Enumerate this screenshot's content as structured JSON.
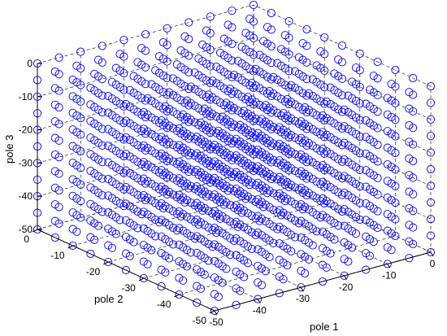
{
  "chart_data": {
    "type": "scatter",
    "projection": "3d",
    "title": "",
    "xlabel": "pole 1",
    "ylabel": "pole 2",
    "zlabel": "pole 3",
    "xlim": [
      -50,
      0
    ],
    "ylim": [
      -50,
      0
    ],
    "zlim": [
      -50,
      0
    ],
    "grid": true,
    "marker": "circle",
    "marker_color": "#0000ff",
    "series": [
      {
        "grid_axes": {
          "x": [
            -50,
            -45,
            -40,
            -35,
            -30,
            -25,
            -20,
            -15,
            -10,
            -5,
            0
          ],
          "y": [
            -50,
            -45,
            -40,
            -35,
            -30,
            -25,
            -20,
            -15,
            -10,
            -5,
            0
          ],
          "z": [
            -50,
            -45,
            -40,
            -35,
            -30,
            -25,
            -20,
            -15,
            -10,
            -5,
            0
          ]
        },
        "description": "full 3D lattice"
      }
    ],
    "x_ticks": [
      -50,
      -40,
      -30,
      -20,
      -10,
      0
    ],
    "x_tick_labels": [
      "-50",
      "-40",
      "-30",
      "-20",
      "-10",
      "0"
    ],
    "y_ticks": [
      -50,
      -40,
      -30,
      -20,
      -10,
      0
    ],
    "y_tick_labels": [
      "-50",
      "-40",
      "-30",
      "-20",
      "-10",
      "0"
    ],
    "z_ticks": [
      -50,
      -40,
      -30,
      -20,
      -10,
      0
    ],
    "z_tick_labels": [
      "-50",
      "-40",
      "-30",
      "-20",
      "-10",
      "0"
    ]
  }
}
